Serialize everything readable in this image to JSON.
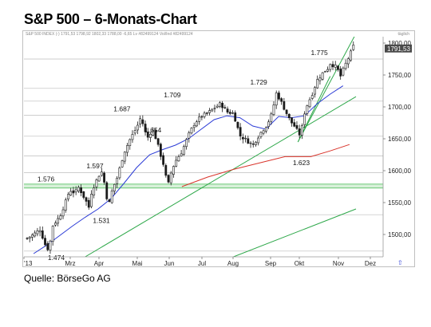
{
  "title": "S&P 500 – 6-Monats-Chart",
  "source": "Quelle: BörseGo AG",
  "header_info": {
    "text": "S&P 500 INDEX (-)  1791,53  1798,92  1802,33  1788,00  -6,65 Lv  #82499124  Vol/Ind  #82499124",
    "right": "täglich"
  },
  "icon": "arrow-icon",
  "colors": {
    "candle": "#1a1a1a",
    "ma_short": "#2b3bd6",
    "ma_long": "#d9342b",
    "trend": "#2ea84a",
    "support_band": "#7dcf86",
    "hline": "#bdbdbd",
    "price_box": "#4a4a4a"
  },
  "chart_data": {
    "type": "candlestick",
    "x_ticks": [
      "'13",
      "Mrz",
      "Apr",
      "Mai",
      "Jun",
      "Jul",
      "Aug",
      "Sep",
      "Okt",
      "Nov",
      "Dez"
    ],
    "y_ticks": [
      "1500,00",
      "1550,00",
      "1600,00",
      "1650,00",
      "1700,00",
      "1750,00",
      "1800,00"
    ],
    "ylim": [
      1465,
      1810
    ],
    "current_price_label": "1791,53",
    "annotations": [
      {
        "text": "1.474",
        "value": 1474
      },
      {
        "text": "1.576",
        "value": 1576
      },
      {
        "text": "1.597",
        "value": 1597
      },
      {
        "text": "1.531",
        "value": 1531
      },
      {
        "text": "1.687",
        "value": 1687
      },
      {
        "text": "1.654",
        "value": 1654
      },
      {
        "text": "1.709",
        "value": 1709
      },
      {
        "text": "1.729",
        "value": 1729
      },
      {
        "text": "1.623",
        "value": 1623
      },
      {
        "text": "1.775",
        "value": 1775
      }
    ],
    "horizontal_levels": [
      1474,
      1531,
      1576,
      1597,
      1623,
      1654,
      1687,
      1709,
      1729,
      1775
    ],
    "support_band": [
      1573,
      1579
    ],
    "close_anchors": [
      [
        0.0,
        1494
      ],
      [
        0.5,
        1500
      ],
      [
        1.0,
        1508
      ],
      [
        1.5,
        1478
      ],
      [
        1.7,
        1478
      ],
      [
        2.0,
        1515
      ],
      [
        2.5,
        1527
      ],
      [
        3.0,
        1552
      ],
      [
        3.3,
        1570
      ],
      [
        3.7,
        1565
      ],
      [
        4.0,
        1574
      ],
      [
        4.5,
        1555
      ],
      [
        4.8,
        1542
      ],
      [
        5.0,
        1568
      ],
      [
        5.5,
        1590
      ],
      [
        5.75,
        1600
      ],
      [
        6.0,
        1580
      ],
      [
        6.3,
        1543
      ],
      [
        6.6,
        1570
      ],
      [
        7.0,
        1590
      ],
      [
        7.5,
        1628
      ],
      [
        8.0,
        1650
      ],
      [
        8.5,
        1668
      ],
      [
        8.8,
        1683
      ],
      [
        9.0,
        1672
      ],
      [
        9.3,
        1650
      ],
      [
        9.7,
        1665
      ],
      [
        10.0,
        1650
      ],
      [
        10.3,
        1628
      ],
      [
        10.6,
        1608
      ],
      [
        10.9,
        1575
      ],
      [
        11.2,
        1600
      ],
      [
        11.5,
        1615
      ],
      [
        12.0,
        1630
      ],
      [
        12.5,
        1655
      ],
      [
        13.0,
        1675
      ],
      [
        13.5,
        1685
      ],
      [
        14.0,
        1690
      ],
      [
        14.5,
        1698
      ],
      [
        15.0,
        1705
      ],
      [
        15.5,
        1692
      ],
      [
        16.0,
        1690
      ],
      [
        16.5,
        1655
      ],
      [
        17.0,
        1648
      ],
      [
        17.5,
        1640
      ],
      [
        17.8,
        1650
      ],
      [
        18.2,
        1662
      ],
      [
        18.6,
        1672
      ],
      [
        19.0,
        1690
      ],
      [
        19.3,
        1722
      ],
      [
        19.6,
        1712
      ],
      [
        20.0,
        1695
      ],
      [
        20.4,
        1678
      ],
      [
        20.8,
        1668
      ],
      [
        21.0,
        1660
      ],
      [
        21.2,
        1655
      ],
      [
        21.5,
        1690
      ],
      [
        21.8,
        1708
      ],
      [
        22.0,
        1715
      ],
      [
        22.5,
        1742
      ],
      [
        23.0,
        1755
      ],
      [
        23.3,
        1760
      ],
      [
        23.5,
        1768
      ],
      [
        24.0,
        1762
      ],
      [
        24.3,
        1748
      ],
      [
        24.5,
        1758
      ],
      [
        24.8,
        1772
      ],
      [
        25.0,
        1780
      ],
      [
        25.3,
        1795
      ]
    ],
    "ma_short": [
      [
        0.5,
        1470
      ],
      [
        1.5,
        1483
      ],
      [
        2.5,
        1498
      ],
      [
        3.5,
        1513
      ],
      [
        4.5,
        1527
      ],
      [
        5.5,
        1540
      ],
      [
        6.5,
        1556
      ],
      [
        7.5,
        1580
      ],
      [
        8.5,
        1605
      ],
      [
        9.5,
        1625
      ],
      [
        10.5,
        1633
      ],
      [
        11.5,
        1640
      ],
      [
        12.5,
        1650
      ],
      [
        13.5,
        1665
      ],
      [
        14.5,
        1680
      ],
      [
        15.5,
        1686
      ],
      [
        16.5,
        1683
      ],
      [
        17.5,
        1670
      ],
      [
        18.5,
        1665
      ],
      [
        19.5,
        1685
      ],
      [
        20.5,
        1683
      ],
      [
        21.5,
        1686
      ],
      [
        22.5,
        1705
      ],
      [
        23.5,
        1720
      ],
      [
        24.5,
        1733
      ]
    ],
    "ma_long": [
      [
        12.0,
        1575
      ],
      [
        14.0,
        1590
      ],
      [
        16.0,
        1602
      ],
      [
        18.0,
        1612
      ],
      [
        20.0,
        1622
      ],
      [
        22.0,
        1622
      ],
      [
        23.5,
        1631
      ],
      [
        25.0,
        1641
      ]
    ],
    "trendlines": [
      {
        "from": [
          4.5,
          1465
        ],
        "to": [
          25.5,
          1716
        ]
      },
      {
        "from": [
          16.0,
          1465
        ],
        "to": [
          25.5,
          1540
        ]
      },
      {
        "from": [
          21.0,
          1645
        ],
        "to": [
          25.5,
          1815
        ]
      },
      {
        "from": [
          21.0,
          1645
        ],
        "to": [
          23.5,
          1748
        ]
      }
    ]
  }
}
